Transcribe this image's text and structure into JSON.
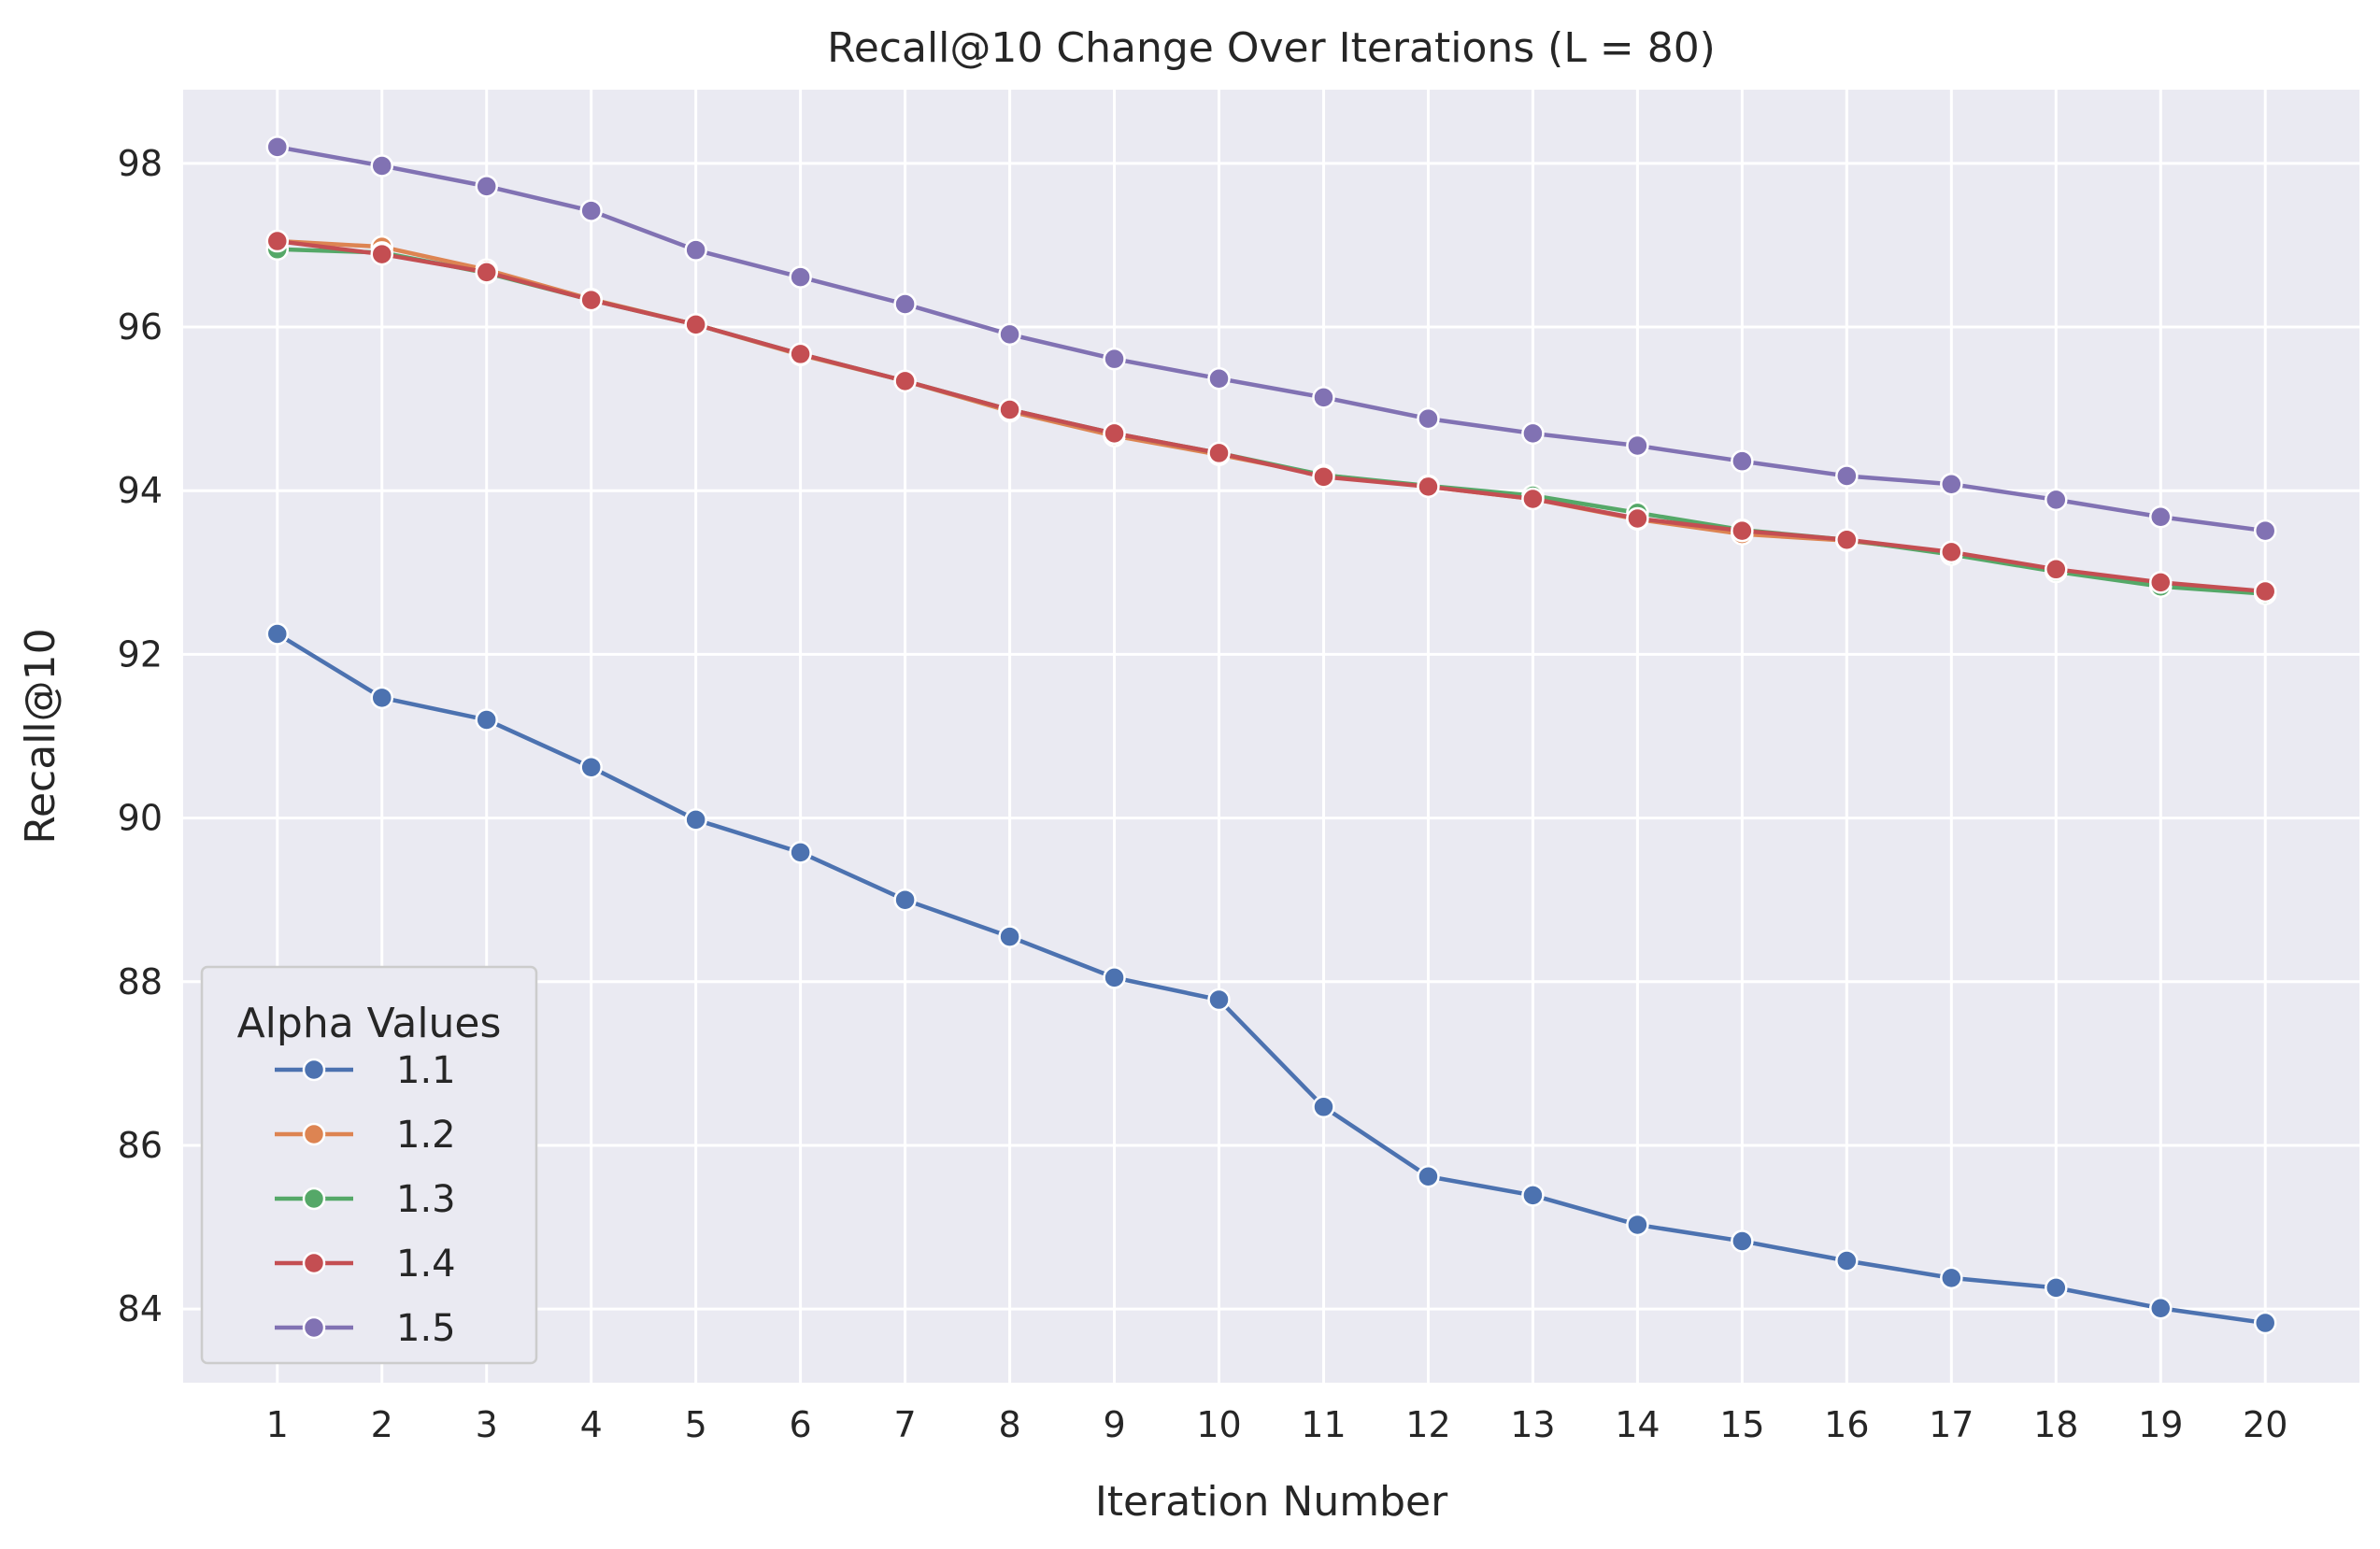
{
  "chart_data": {
    "type": "line",
    "title": "Recall@10 Change Over Iterations (L = 80)",
    "xlabel": "Iteration Number",
    "ylabel": "Recall@10",
    "x": [
      1,
      2,
      3,
      4,
      5,
      6,
      7,
      8,
      9,
      10,
      11,
      12,
      13,
      14,
      15,
      16,
      17,
      18,
      19,
      20
    ],
    "xlim": [
      0.1,
      20.9
    ],
    "ylim": [
      83.1,
      98.9
    ],
    "yticks": [
      84,
      86,
      88,
      90,
      92,
      94,
      96,
      98
    ],
    "grid": true,
    "background": "#eaeaf2",
    "legend": {
      "title": "Alpha Values",
      "position": "lower-left"
    },
    "series": [
      {
        "name": "1.1",
        "color": "#4c72b0",
        "values": [
          92.25,
          91.47,
          91.2,
          90.62,
          89.98,
          89.58,
          89.0,
          88.55,
          88.05,
          87.78,
          86.47,
          85.62,
          85.39,
          85.03,
          84.83,
          84.59,
          84.38,
          84.26,
          84.01,
          83.83
        ]
      },
      {
        "name": "1.2",
        "color": "#dd8452",
        "values": [
          97.05,
          96.98,
          96.7,
          96.34,
          96.03,
          95.66,
          95.34,
          94.97,
          94.67,
          94.44,
          94.19,
          94.05,
          93.9,
          93.65,
          93.47,
          93.39,
          93.24,
          93.03,
          92.85,
          92.76
        ]
      },
      {
        "name": "1.3",
        "color": "#55a868",
        "values": [
          96.95,
          96.91,
          96.66,
          96.33,
          96.03,
          95.67,
          95.34,
          94.99,
          94.7,
          94.46,
          94.19,
          94.06,
          93.94,
          93.73,
          93.52,
          93.4,
          93.22,
          93.01,
          92.83,
          92.74
        ]
      },
      {
        "name": "1.4",
        "color": "#c44e52",
        "values": [
          97.05,
          96.89,
          96.67,
          96.33,
          96.03,
          95.67,
          95.34,
          94.99,
          94.7,
          94.46,
          94.17,
          94.05,
          93.9,
          93.66,
          93.51,
          93.4,
          93.25,
          93.04,
          92.88,
          92.77
        ]
      },
      {
        "name": "1.5",
        "color": "#8172b3",
        "values": [
          98.2,
          97.97,
          97.72,
          97.42,
          96.94,
          96.61,
          96.28,
          95.91,
          95.61,
          95.37,
          95.14,
          94.88,
          94.7,
          94.55,
          94.36,
          94.18,
          94.08,
          93.89,
          93.68,
          93.51
        ]
      }
    ]
  }
}
